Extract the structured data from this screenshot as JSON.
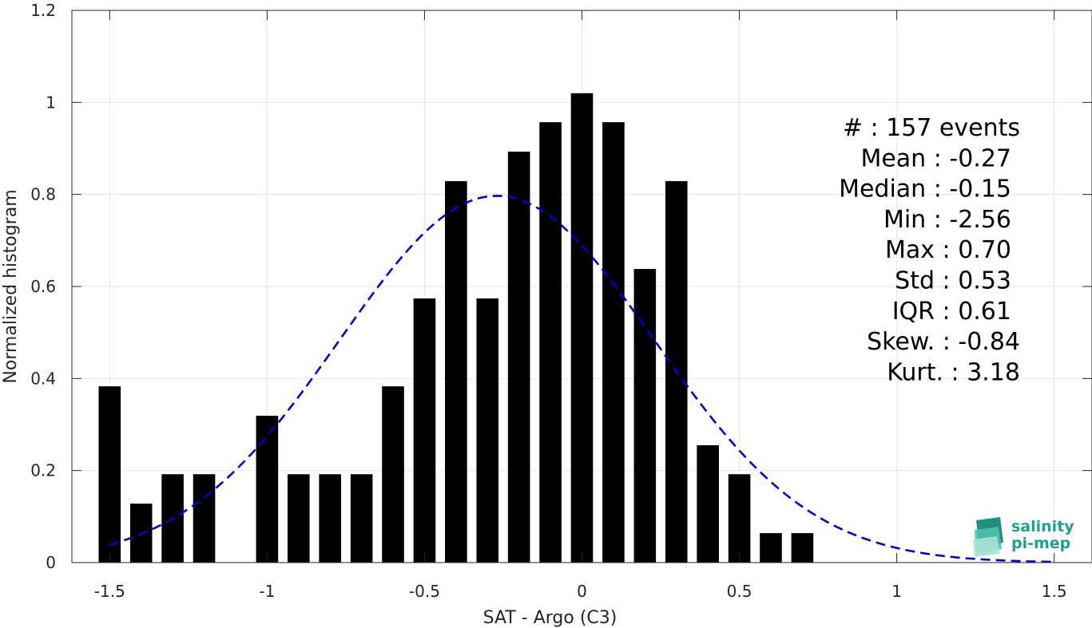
{
  "chart_data": {
    "type": "bar",
    "xlabel": "SAT - Argo (C3)",
    "ylabel": "Normalized histogram",
    "xlim": [
      -1.62,
      1.62
    ],
    "ylim": [
      0,
      1.2
    ],
    "xticks": [
      -1.5,
      -1,
      -0.5,
      0,
      0.5,
      1,
      1.5
    ],
    "xtick_labels": [
      "-1.5",
      "-1",
      "-0.5",
      "0",
      "0.5",
      "1",
      "1.5"
    ],
    "yticks": [
      0,
      0.2,
      0.4,
      0.6,
      0.8,
      1,
      1.2
    ],
    "ytick_labels": [
      "0",
      "0.2",
      "0.4",
      "0.6",
      "0.8",
      "1",
      "1.2"
    ],
    "grid": true,
    "bar_width": 0.07,
    "bar_color": "#000000",
    "bars": {
      "x": [
        -1.5,
        -1.4,
        -1.3,
        -1.2,
        -1.1,
        -1.0,
        -0.9,
        -0.8,
        -0.7,
        -0.6,
        -0.5,
        -0.4,
        -0.3,
        -0.2,
        -0.1,
        0.0,
        0.1,
        0.2,
        0.3,
        0.4,
        0.5,
        0.6,
        0.7
      ],
      "values": [
        0.383,
        0.128,
        0.192,
        0.192,
        0,
        0.319,
        0.192,
        0.192,
        0.192,
        0.383,
        0.574,
        0.829,
        0.574,
        0.893,
        0.957,
        1.02,
        0.957,
        0.638,
        0.829,
        0.255,
        0.192,
        0.064,
        0.064
      ]
    },
    "fit_curve": {
      "style": "dashed",
      "color": "#0000dd",
      "mean": -0.27,
      "std": 0.5,
      "peak": 0.797,
      "x_range": [
        -1.5,
        1.5
      ]
    },
    "stats": [
      {
        "label": "#  : 157 events",
        "right_edge": "events"
      },
      {
        "label": "Mean : -0.27"
      },
      {
        "label": "Median : -0.15"
      },
      {
        "label": "Min : -2.56"
      },
      {
        "label": "Max : 0.70"
      },
      {
        "label": "Std : 0.53"
      },
      {
        "label": "IQR : 0.61"
      },
      {
        "label": "Skew. : -0.84"
      },
      {
        "label": "Kurt. : 3.18"
      }
    ]
  },
  "logo": {
    "line1": "salinity",
    "line2": "pi-mep",
    "color": "#1aa38c"
  }
}
